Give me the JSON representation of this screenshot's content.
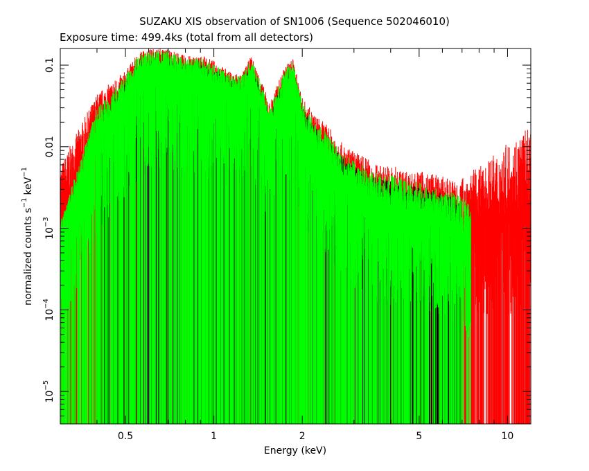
{
  "chart_data": {
    "type": "bar",
    "title": "SUZAKU XIS observation of SN1006 (Sequence 502046010)",
    "subtitle": "Exposure time: 499.4ks (total from all detectors)",
    "xlabel": "Energy (keV)",
    "ylabel": "normalized counts s",
    "ylabel_unit": "keV",
    "superscript": "−1",
    "x_scale": "log",
    "y_scale": "log",
    "xlim": [
      0.3,
      12
    ],
    "ylim": [
      4e-06,
      0.16
    ],
    "grid": false,
    "x_ticks": [
      {
        "value": 0.5,
        "label": "0.5"
      },
      {
        "value": 1,
        "label": "1"
      },
      {
        "value": 2,
        "label": "2"
      },
      {
        "value": 5,
        "label": "5"
      },
      {
        "value": 10,
        "label": "10"
      }
    ],
    "y_ticks": [
      {
        "value": 0.1,
        "label": "0.1"
      },
      {
        "value": 0.01,
        "label": "0.01"
      },
      {
        "value": 0.001,
        "mantissa": "10",
        "exponent": "−3"
      },
      {
        "value": 0.0001,
        "mantissa": "10",
        "exponent": "−4"
      },
      {
        "value": 1e-05,
        "mantissa": "10",
        "exponent": "−5"
      }
    ],
    "series": [
      {
        "color": "#ff0000",
        "x": [
          0.3,
          0.4,
          0.5,
          0.56,
          0.62,
          0.7,
          0.8,
          0.92,
          1.02,
          1.15,
          1.25,
          1.34,
          1.42,
          1.55,
          1.75,
          1.86,
          2.0,
          2.2,
          2.45,
          2.8,
          3.2,
          3.6,
          4.0,
          4.6,
          5.2,
          5.8,
          6.4,
          6.9,
          7.5,
          8.2,
          9.0,
          10.0,
          11.0,
          12.0
        ],
        "y_center": [
          0.0015,
          0.018,
          0.045,
          0.085,
          0.1,
          0.09,
          0.08,
          0.075,
          0.06,
          0.05,
          0.05,
          0.08,
          0.045,
          0.018,
          0.06,
          0.075,
          0.02,
          0.012,
          0.008,
          0.004,
          0.0028,
          0.0022,
          0.002,
          0.0017,
          0.0016,
          0.0016,
          0.0014,
          0.0013,
          0.0012,
          0.0011,
          0.0012,
          0.0014,
          0.0016,
          0.0018
        ],
        "y_peak": [
          0.006,
          0.045,
          0.085,
          0.15,
          0.16,
          0.16,
          0.13,
          0.13,
          0.11,
          0.08,
          0.08,
          0.13,
          0.08,
          0.035,
          0.1,
          0.12,
          0.04,
          0.025,
          0.018,
          0.01,
          0.008,
          0.006,
          0.006,
          0.005,
          0.005,
          0.0045,
          0.004,
          0.004,
          0.005,
          0.006,
          0.008,
          0.011,
          0.015,
          0.018
        ]
      },
      {
        "color": "#00ff00",
        "x": [
          0.3,
          0.4,
          0.5,
          0.56,
          0.62,
          0.7,
          0.8,
          0.92,
          1.02,
          1.15,
          1.25,
          1.34,
          1.42,
          1.55,
          1.75,
          1.86,
          2.0,
          2.2,
          2.45,
          2.8,
          3.2,
          3.6,
          4.0,
          4.6,
          5.2,
          5.8,
          6.4,
          6.9,
          7.5
        ],
        "y_center": [
          0.0008,
          0.014,
          0.04,
          0.08,
          0.09,
          0.085,
          0.075,
          0.07,
          0.055,
          0.048,
          0.045,
          0.075,
          0.04,
          0.015,
          0.05,
          0.07,
          0.018,
          0.01,
          0.007,
          0.0035,
          0.0025,
          0.002,
          0.0018,
          0.0015,
          0.0014,
          0.0013,
          0.0011,
          0.0009,
          0.0007
        ],
        "y_peak": [
          0.0012,
          0.03,
          0.075,
          0.14,
          0.15,
          0.15,
          0.12,
          0.12,
          0.1,
          0.075,
          0.075,
          0.12,
          0.075,
          0.03,
          0.09,
          0.11,
          0.035,
          0.02,
          0.015,
          0.008,
          0.006,
          0.005,
          0.0045,
          0.004,
          0.0035,
          0.003,
          0.0028,
          0.0025,
          0.002
        ]
      },
      {
        "color": "#000000",
        "x": [
          0.4,
          0.5,
          0.56,
          0.62,
          0.7,
          0.8,
          0.92,
          1.02,
          1.15,
          1.25,
          1.34,
          1.42,
          1.55,
          1.75,
          1.86,
          2.0,
          2.2,
          2.45,
          2.8,
          3.2,
          3.6,
          4.0,
          4.6,
          5.2,
          5.8,
          6.4,
          6.9
        ],
        "y_center": [
          0.01,
          0.035,
          0.07,
          0.08,
          0.075,
          0.065,
          0.06,
          0.05,
          0.042,
          0.04,
          0.065,
          0.035,
          0.014,
          0.045,
          0.06,
          0.016,
          0.009,
          0.006,
          0.003,
          0.0022,
          0.0018,
          0.0016,
          0.0014,
          0.0013,
          0.0012,
          0.001,
          0.0008
        ],
        "y_peak": [
          0.02,
          0.06,
          0.11,
          0.12,
          0.12,
          0.1,
          0.1,
          0.085,
          0.065,
          0.065,
          0.1,
          0.06,
          0.025,
          0.075,
          0.09,
          0.03,
          0.018,
          0.012,
          0.007,
          0.005,
          0.004,
          0.004,
          0.0035,
          0.003,
          0.0028,
          0.0025,
          0.002
        ]
      }
    ]
  }
}
